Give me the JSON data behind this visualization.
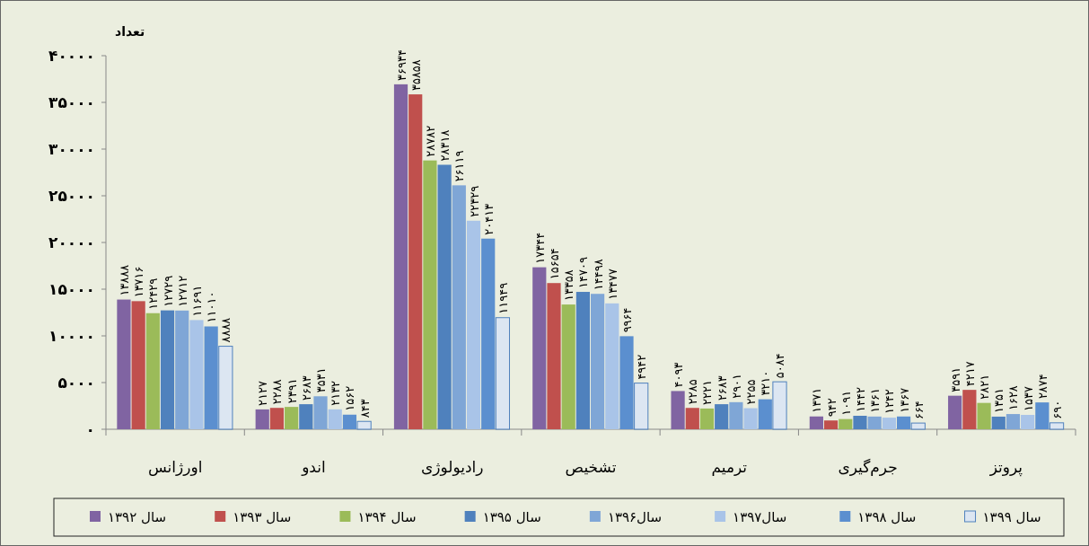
{
  "chart_data": {
    "type": "bar",
    "ylabel": "تعداد",
    "categories": [
      "اورژانس",
      "اندو",
      "رادیولوژی",
      "تشخیص",
      "ترمیم",
      "جرم‌گیری",
      "پروتز"
    ],
    "ylim": [
      0,
      40000
    ],
    "yticks": [
      {
        "value": 0,
        "label": "۰"
      },
      {
        "value": 5000,
        "label": "۵۰۰۰"
      },
      {
        "value": 10000,
        "label": "۱۰۰۰۰"
      },
      {
        "value": 15000,
        "label": "۱۵۰۰۰"
      },
      {
        "value": 20000,
        "label": "۲۰۰۰۰"
      },
      {
        "value": 25000,
        "label": "۲۵۰۰۰"
      },
      {
        "value": 30000,
        "label": "۳۰۰۰۰"
      },
      {
        "value": 35000,
        "label": "۳۵۰۰۰"
      },
      {
        "value": 40000,
        "label": "۴۰۰۰۰"
      }
    ],
    "grid": false,
    "legend": "bottom",
    "series": [
      {
        "name": "سال ۱۳۹۲",
        "color": "#8064a2",
        "values": [
          13888,
          2127,
          36934,
          17344,
          4093,
          1371,
          3591
        ],
        "value_labels": [
          "۱۳۸۸۸",
          "۲۱۲۷",
          "۳۶۹۳۴",
          "۱۷۳۴۴",
          "۴۰۹۳",
          "۱۳۷۱",
          "۳۵۹۱"
        ]
      },
      {
        "name": "سال ۱۳۹۳",
        "color": "#c0504d",
        "values": [
          13716,
          2288,
          35858,
          15654,
          2285,
          942,
          4217
        ],
        "value_labels": [
          "۱۳۷۱۶",
          "۲۲۸۸",
          "۳۵۸۵۸",
          "۱۵۶۵۴",
          "۲۲۸۵",
          "۹۴۲",
          "۴۲۱۷"
        ]
      },
      {
        "name": "سال ۱۳۹۴",
        "color": "#9bbb59",
        "values": [
          12429,
          2391,
          28782,
          13358,
          2221,
          1091,
          2821
        ],
        "value_labels": [
          "۱۲۴۲۹",
          "۲۳۹۱",
          "۲۸۷۸۲",
          "۱۳۳۵۸",
          "۲۲۲۱",
          "۱۰۹۱",
          "۲۸۲۱"
        ]
      },
      {
        "name": "سال ۱۳۹۵",
        "color": "#4f81bd",
        "values": [
          12729,
          2683,
          28318,
          14709,
          2683,
          1442,
          1351
        ],
        "value_labels": [
          "۱۲۷۲۹",
          "۲۶۸۳",
          "۲۸۳۱۸",
          "۱۴۷۰۹",
          "۲۶۸۳",
          "۱۴۴۲",
          "۱۳۵۱"
        ]
      },
      {
        "name": "سال۱۳۹۶",
        "color": "#7fa6d6",
        "values": [
          12712,
          3531,
          26119,
          14498,
          2901,
          1361,
          1628
        ],
        "value_labels": [
          "۱۲۷۱۲",
          "۳۵۳۱",
          "۲۶۱۱۹",
          "۱۴۴۹۸",
          "۲۹۰۱",
          "۱۳۶۱",
          "۱۶۲۸"
        ]
      },
      {
        "name": "سال۱۳۹۷",
        "color": "#a9c4e8",
        "values": [
          11691,
          2132,
          22329,
          13477,
          2255,
          1242,
          1537
        ],
        "value_labels": [
          "۱۱۶۹۱",
          "۲۱۳۲",
          "۲۲۳۲۹",
          "۱۳۴۷۷",
          "۲۲۵۵",
          "۱۲۴۲",
          "۱۵۳۷"
        ]
      },
      {
        "name": "سال ۱۳۹۸",
        "color": "#5b8fcf",
        "values": [
          11010,
          1562,
          20413,
          9964,
          3210,
          1367,
          2874
        ],
        "value_labels": [
          "۱۱۰۱۰",
          "۱۵۶۲",
          "۲۰۴۱۳",
          "۹۹۶۴",
          "۳۲۱۰",
          "۱۳۶۷",
          "۲۸۷۴"
        ]
      },
      {
        "name": "سال ۱۳۹۹",
        "color": "#dce6f2",
        "values": [
          8888,
          843,
          11949,
          4942,
          5084,
          664,
          690
        ],
        "value_labels": [
          "۸۸۸۸",
          "۸۴۳",
          "۱۱۹۴۹",
          "۴۹۴۲",
          "۵۰۸۴",
          "۶۶۴",
          "۶۹۰"
        ]
      }
    ]
  }
}
